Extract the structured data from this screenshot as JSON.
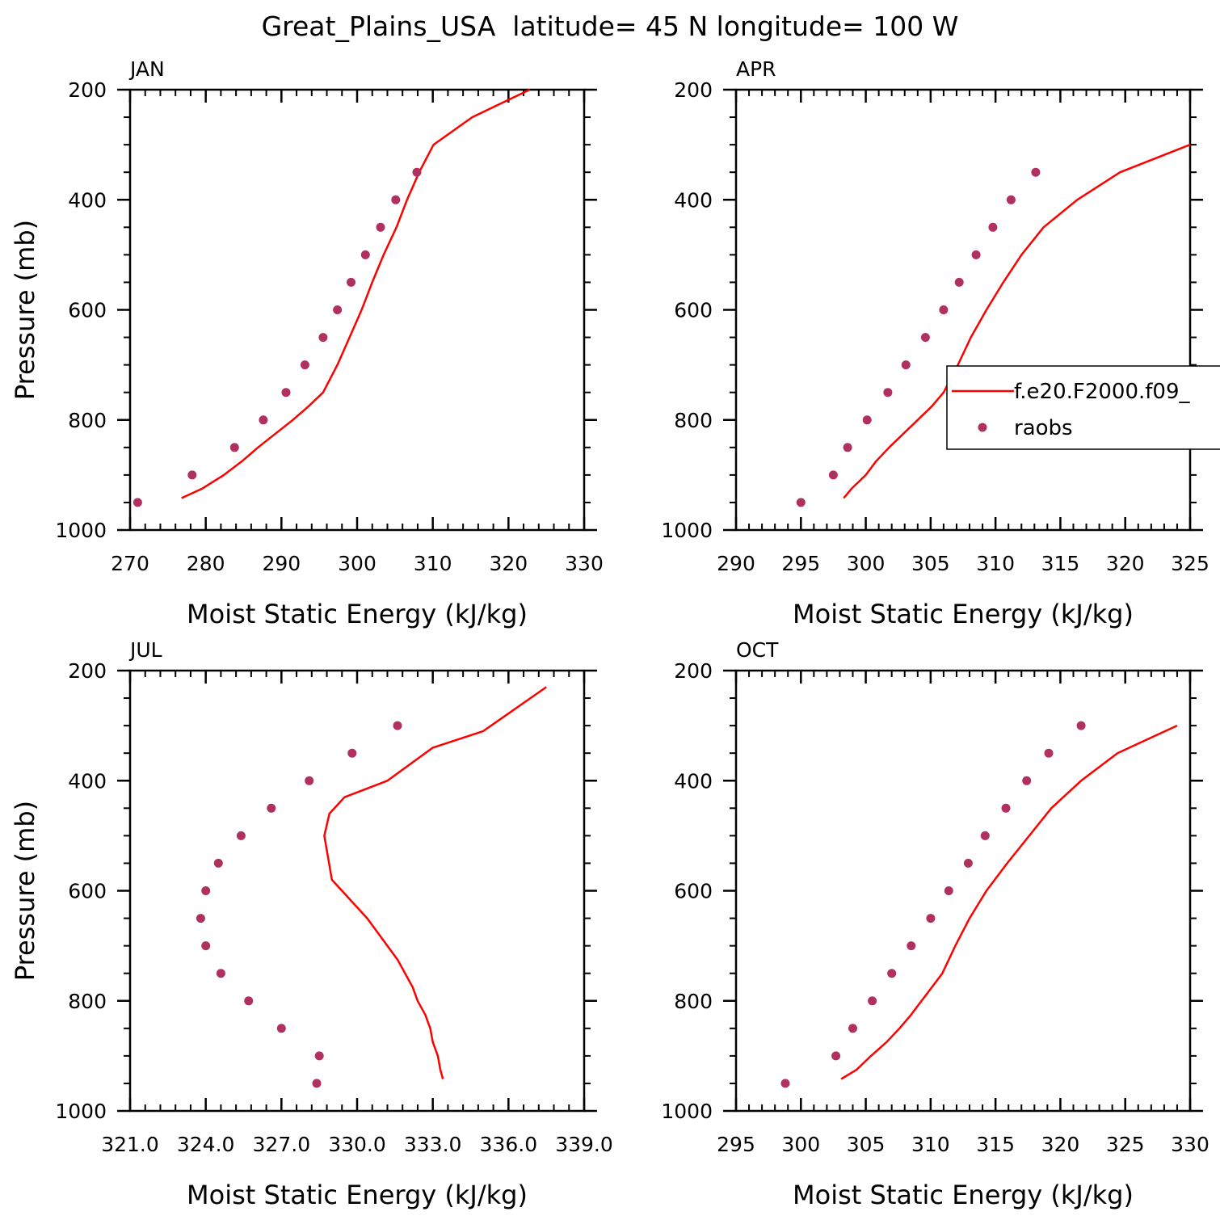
{
  "figure": {
    "title": "Great_Plains_USA  latitude= 45 N longitude= 100 W"
  },
  "legend": {
    "model_label": "f.e20.F2000.f09_",
    "obs_label": "raobs"
  },
  "colors": {
    "model": "#ff0000",
    "obs": "#b03060",
    "axes": "#000000"
  },
  "chart_data": [
    {
      "type": "line",
      "panel": "JAN",
      "xlabel": "Moist Static Energy (kJ/kg)",
      "ylabel": "Pressure (mb)",
      "xlim": [
        270,
        330
      ],
      "ylim": [
        1000,
        200
      ],
      "xticks": [
        270,
        280,
        290,
        300,
        310,
        320,
        330
      ],
      "xtick_labels": [
        "270",
        "280",
        "290",
        "300",
        "310",
        "320",
        "330"
      ],
      "yticks": [
        200,
        400,
        600,
        800,
        1000
      ],
      "ytick_labels": [
        "200",
        "400",
        "600",
        "800",
        "1000"
      ],
      "series": [
        {
          "name": "f.e20.F2000.f09_",
          "kind": "line",
          "x": [
            276.8,
            279.5,
            282.4,
            284.8,
            286.9,
            289.2,
            291.5,
            293.6,
            295.5,
            297.4,
            299.0,
            300.6,
            302.0,
            303.5,
            305.2,
            306.6,
            308.2,
            310.1,
            315.2,
            322.8
          ],
          "y": [
            942,
            925,
            900,
            875,
            850,
            825,
            800,
            775,
            750,
            700,
            650,
            600,
            550,
            500,
            450,
            400,
            350,
            300,
            250,
            200
          ]
        },
        {
          "name": "raobs",
          "kind": "scatter",
          "x": [
            271.0,
            278.2,
            283.8,
            287.6,
            290.6,
            293.1,
            295.5,
            297.4,
            299.2,
            301.1,
            303.1,
            305.1,
            307.9
          ],
          "y": [
            950,
            900,
            850,
            800,
            750,
            700,
            650,
            600,
            550,
            500,
            450,
            400,
            350
          ]
        }
      ]
    },
    {
      "type": "line",
      "panel": "APR",
      "xlabel": "Moist Static Energy (kJ/kg)",
      "ylabel": "",
      "xlim": [
        290,
        325
      ],
      "ylim": [
        1000,
        200
      ],
      "xticks": [
        290,
        295,
        300,
        305,
        310,
        315,
        320,
        325
      ],
      "xtick_labels": [
        "290",
        "295",
        "300",
        "305",
        "310",
        "315",
        "320",
        "325"
      ],
      "yticks": [
        200,
        400,
        600,
        800,
        1000
      ],
      "ytick_labels": [
        "200",
        "400",
        "600",
        "800",
        "1000"
      ],
      "series": [
        {
          "name": "f.e20.F2000.f09_",
          "kind": "line",
          "x": [
            298.3,
            298.9,
            300.0,
            300.8,
            301.8,
            302.9,
            304.0,
            305.1,
            306.0,
            307.1,
            308.1,
            309.3,
            310.6,
            312.0,
            313.7,
            316.3,
            319.6,
            325.0
          ],
          "y": [
            942,
            925,
            900,
            875,
            850,
            825,
            800,
            775,
            750,
            700,
            650,
            600,
            550,
            500,
            450,
            400,
            350,
            300
          ]
        },
        {
          "name": "raobs",
          "kind": "scatter",
          "x": [
            295.0,
            297.5,
            298.6,
            300.1,
            301.7,
            303.1,
            304.6,
            306.0,
            307.2,
            308.5,
            309.8,
            311.2,
            313.1
          ],
          "y": [
            950,
            900,
            850,
            800,
            750,
            700,
            650,
            600,
            550,
            500,
            450,
            400,
            350
          ]
        }
      ]
    },
    {
      "type": "line",
      "panel": "JUL",
      "xlabel": "Moist Static Energy (kJ/kg)",
      "ylabel": "Pressure (mb)",
      "xlim": [
        321.0,
        339.0
      ],
      "ylim": [
        1000,
        200
      ],
      "xticks": [
        321,
        324,
        327,
        330,
        333,
        336,
        339
      ],
      "xtick_labels": [
        "321.0",
        "324.0",
        "327.0",
        "330.0",
        "333.0",
        "336.0",
        "339.0"
      ],
      "yticks": [
        200,
        400,
        600,
        800,
        1000
      ],
      "ytick_labels": [
        "200",
        "400",
        "600",
        "800",
        "1000"
      ],
      "series": [
        {
          "name": "f.e20.F2000.f09_",
          "kind": "line",
          "x": [
            333.4,
            333.3,
            333.2,
            333.0,
            332.9,
            332.7,
            332.4,
            332.2,
            331.6,
            330.4,
            329.0,
            328.7,
            328.9,
            329.5,
            331.2,
            333.0,
            335.0,
            337.5
          ],
          "y": [
            942,
            925,
            900,
            875,
            850,
            825,
            800,
            775,
            725,
            650,
            580,
            500,
            460,
            430,
            400,
            340,
            310,
            230
          ]
        },
        {
          "name": "raobs",
          "kind": "scatter",
          "x": [
            328.4,
            328.5,
            327.0,
            325.7,
            324.6,
            324.0,
            323.8,
            324.0,
            324.5,
            325.4,
            326.6,
            328.1,
            329.8,
            331.6
          ],
          "y": [
            950,
            900,
            850,
            800,
            750,
            700,
            650,
            600,
            550,
            500,
            450,
            400,
            350,
            300
          ]
        }
      ]
    },
    {
      "type": "line",
      "panel": "OCT",
      "xlabel": "Moist Static Energy (kJ/kg)",
      "ylabel": "",
      "xlim": [
        295,
        330
      ],
      "ylim": [
        1000,
        200
      ],
      "xticks": [
        295,
        300,
        305,
        310,
        315,
        320,
        325,
        330
      ],
      "xtick_labels": [
        "295",
        "300",
        "305",
        "310",
        "315",
        "320",
        "325",
        "330"
      ],
      "yticks": [
        200,
        400,
        600,
        800,
        1000
      ],
      "ytick_labels": [
        "200",
        "400",
        "600",
        "800",
        "1000"
      ],
      "series": [
        {
          "name": "f.e20.F2000.f09_",
          "kind": "line",
          "x": [
            303.1,
            304.3,
            305.4,
            306.6,
            307.6,
            308.5,
            309.3,
            310.1,
            310.9,
            311.9,
            313.0,
            314.3,
            315.9,
            317.6,
            319.3,
            321.6,
            324.4,
            329.0
          ],
          "y": [
            942,
            925,
            900,
            875,
            850,
            825,
            800,
            775,
            750,
            700,
            650,
            600,
            550,
            500,
            450,
            400,
            350,
            300
          ]
        },
        {
          "name": "raobs",
          "kind": "scatter",
          "x": [
            298.8,
            302.7,
            304.0,
            305.5,
            307.0,
            308.5,
            310.0,
            311.4,
            312.9,
            314.2,
            315.8,
            317.4,
            319.1,
            321.6
          ],
          "y": [
            950,
            900,
            850,
            800,
            750,
            700,
            650,
            600,
            550,
            500,
            450,
            400,
            350,
            300
          ]
        }
      ]
    }
  ]
}
